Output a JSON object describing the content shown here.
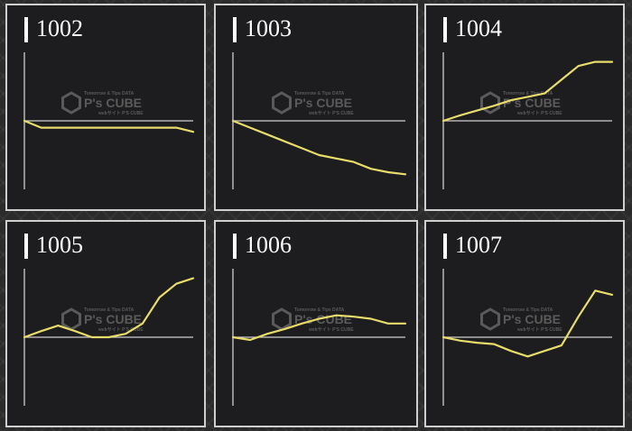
{
  "chart_data": [
    {
      "type": "line",
      "title": "1002",
      "x": [
        0,
        1,
        2,
        3,
        4,
        5,
        6,
        7,
        8,
        9,
        10
      ],
      "values": [
        0.0,
        -0.1,
        -0.1,
        -0.1,
        -0.1,
        -0.1,
        -0.1,
        -0.1,
        -0.1,
        -0.1,
        -0.16
      ],
      "xlim": [
        0,
        10
      ],
      "ylim": [
        -1,
        1
      ]
    },
    {
      "type": "line",
      "title": "1003",
      "x": [
        0,
        1,
        2,
        3,
        4,
        5,
        6,
        7,
        8,
        9,
        10
      ],
      "values": [
        0.0,
        -0.1,
        -0.2,
        -0.3,
        -0.4,
        -0.5,
        -0.55,
        -0.6,
        -0.7,
        -0.75,
        -0.78
      ],
      "xlim": [
        0,
        10
      ],
      "ylim": [
        -1,
        1
      ]
    },
    {
      "type": "line",
      "title": "1004",
      "x": [
        0,
        1,
        2,
        3,
        4,
        5,
        6,
        7,
        8,
        9,
        10
      ],
      "values": [
        0.0,
        0.08,
        0.15,
        0.22,
        0.3,
        0.35,
        0.4,
        0.6,
        0.8,
        0.86,
        0.86
      ],
      "xlim": [
        0,
        10
      ],
      "ylim": [
        -1,
        1
      ]
    },
    {
      "type": "line",
      "title": "1005",
      "x": [
        0,
        1,
        2,
        3,
        4,
        5,
        6,
        7,
        8,
        9,
        10
      ],
      "values": [
        0.0,
        0.09,
        0.17,
        0.09,
        0.0,
        0.0,
        0.05,
        0.2,
        0.58,
        0.78,
        0.86
      ],
      "xlim": [
        0,
        10
      ],
      "ylim": [
        -1,
        1
      ]
    },
    {
      "type": "line",
      "title": "1006",
      "x": [
        0,
        1,
        2,
        3,
        4,
        5,
        6,
        7,
        8,
        9,
        10
      ],
      "values": [
        0.0,
        -0.04,
        0.05,
        0.12,
        0.2,
        0.27,
        0.32,
        0.3,
        0.27,
        0.2,
        0.2
      ],
      "xlim": [
        0,
        10
      ],
      "ylim": [
        -1,
        1
      ]
    },
    {
      "type": "line",
      "title": "1007",
      "x": [
        0,
        1,
        2,
        3,
        4,
        5,
        6,
        7,
        8,
        9,
        10
      ],
      "values": [
        0.0,
        -0.05,
        -0.08,
        -0.1,
        -0.2,
        -0.28,
        -0.2,
        -0.12,
        0.3,
        0.68,
        0.62
      ],
      "xlim": [
        0,
        10
      ],
      "ylim": [
        -1,
        1
      ]
    }
  ],
  "watermark": {
    "brand": "P's CUBE",
    "tagline": "Tomorrow & Tips DATA",
    "subtitle": "webサイト P'S CUBE"
  },
  "colors": {
    "line": "#e8dc6a",
    "axis": "#cfcfcf",
    "panel": "#1d1d1f",
    "border": "#cfcfcf",
    "watermark": "#5a5a5a"
  }
}
